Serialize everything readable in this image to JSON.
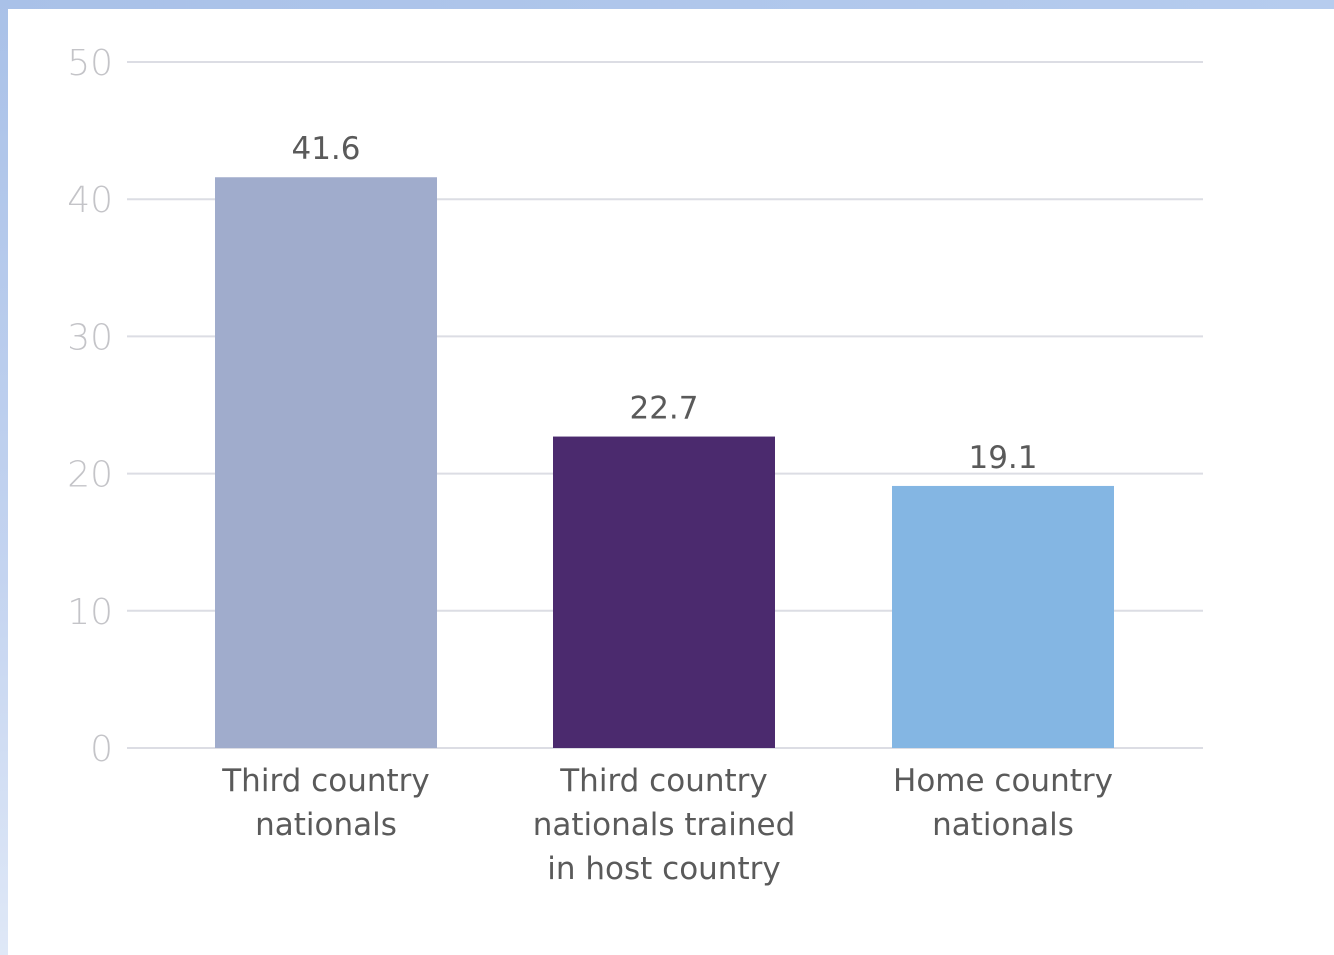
{
  "chart_data": {
    "type": "bar",
    "categories": [
      [
        "Third country",
        "nationals"
      ],
      [
        "Third country",
        "nationals trained",
        "in host country"
      ],
      [
        "Home country",
        "nationals"
      ]
    ],
    "values": [
      41.6,
      22.7,
      19.1
    ],
    "data_labels": [
      "41.6",
      "22.7",
      "19.1"
    ],
    "colors": [
      "#a0accc",
      "#4b2a6e",
      "#84b6e3"
    ],
    "yticks": [
      0,
      10,
      20,
      30,
      40,
      50
    ],
    "ylim": [
      0,
      50
    ],
    "grid": true,
    "legend": "none"
  }
}
